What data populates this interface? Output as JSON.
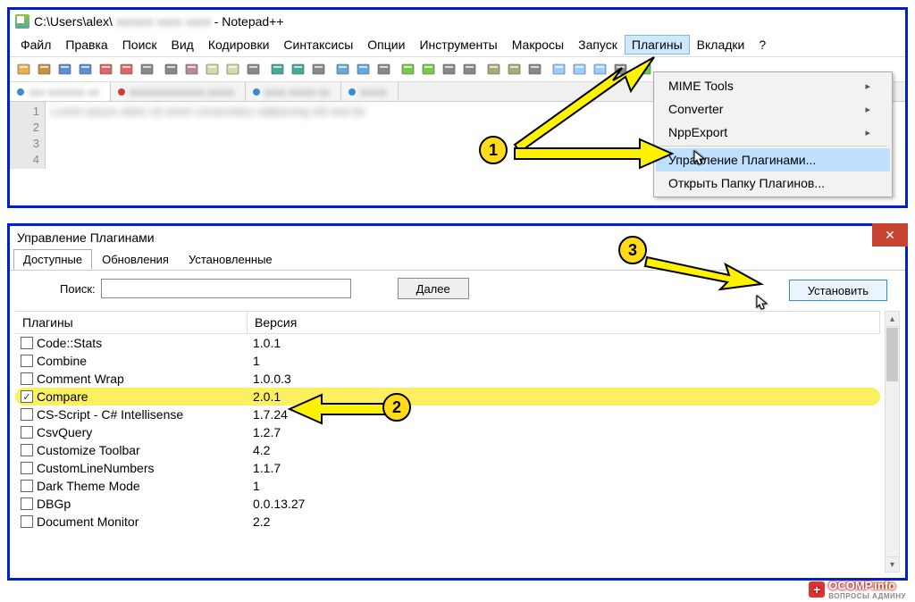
{
  "colors": {
    "window_border": "#0020d0",
    "menu_highlight": "#cde8ff",
    "dropdown_highlight": "#bfe0ff",
    "row_highlight": "#fcf060",
    "annotation_fill": "#ffdb1a",
    "close_button": "#c74433"
  },
  "window1": {
    "title": "C:\\Users\\alex\\",
    "title_suffix": " - Notepad++",
    "menu": [
      {
        "label": "Файл"
      },
      {
        "label": "Правка"
      },
      {
        "label": "Поиск"
      },
      {
        "label": "Вид"
      },
      {
        "label": "Кодировки"
      },
      {
        "label": "Синтаксисы"
      },
      {
        "label": "Опции"
      },
      {
        "label": "Инструменты"
      },
      {
        "label": "Макросы"
      },
      {
        "label": "Запуск"
      },
      {
        "label": "Плагины",
        "active": true
      },
      {
        "label": "Вкладки"
      },
      {
        "label": "?"
      }
    ],
    "toolbar_icons": [
      "new",
      "open",
      "save",
      "saveall",
      "close",
      "closeall",
      "print",
      "cut",
      "copy",
      "paste",
      "undo",
      "redo",
      "find",
      "replace",
      "zoom-in",
      "zoom-out",
      "sync",
      "wordwrap",
      "showall",
      "indent",
      "outdent",
      "folder",
      "doc-list",
      "func-list",
      "doc-map",
      "monitor",
      "record",
      "play",
      "macro",
      "run"
    ],
    "dropdown": {
      "items": [
        {
          "label": "MIME Tools",
          "submenu": true
        },
        {
          "label": "Converter",
          "submenu": true
        },
        {
          "label": "NppExport",
          "submenu": true
        },
        {
          "sep": true
        },
        {
          "label": "Управление Плагинами...",
          "highlighted": true
        },
        {
          "label": "Открыть Папку Плагинов..."
        }
      ]
    },
    "gutter": [
      "1",
      "2",
      "3",
      "4"
    ]
  },
  "window2": {
    "title": "Управление Плагинами",
    "close_label": "✕",
    "tabs": [
      {
        "label": "Доступные",
        "active": true
      },
      {
        "label": "Обновления"
      },
      {
        "label": "Установленные"
      }
    ],
    "search_label": "Поиск:",
    "next_button": "Далее",
    "install_button": "Установить",
    "columns": {
      "name": "Плагины",
      "version": "Версия"
    },
    "rows": [
      {
        "name": "Code::Stats",
        "version": "1.0.1",
        "checked": false
      },
      {
        "name": "Combine",
        "version": "1",
        "checked": false
      },
      {
        "name": "Comment Wrap",
        "version": "1.0.0.3",
        "checked": false
      },
      {
        "name": "Compare",
        "version": "2.0.1",
        "checked": true,
        "highlight": true
      },
      {
        "name": "CS-Script - C# Intellisense",
        "version": "1.7.24",
        "checked": false
      },
      {
        "name": "CsvQuery",
        "version": "1.2.7",
        "checked": false
      },
      {
        "name": "Customize Toolbar",
        "version": "4.2",
        "checked": false
      },
      {
        "name": "CustomLineNumbers",
        "version": "1.1.7",
        "checked": false
      },
      {
        "name": "Dark Theme Mode",
        "version": "1",
        "checked": false
      },
      {
        "name": "DBGp",
        "version": "0.0.13.27",
        "checked": false
      },
      {
        "name": "Document Monitor",
        "version": "2.2",
        "checked": false
      }
    ]
  },
  "annotations": {
    "n1": "1",
    "n2": "2",
    "n3": "3"
  },
  "watermark": {
    "brand": "OCOMP",
    "suffix": ".info",
    "sub": "ВОПРОСЫ АДМИНУ"
  }
}
